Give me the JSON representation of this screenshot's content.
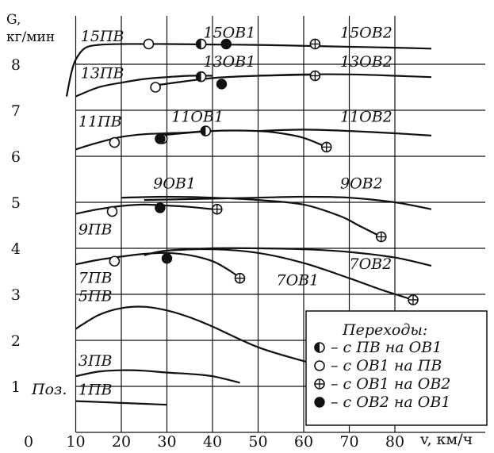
{
  "chart_data": {
    "type": "line",
    "title": "",
    "ylabel_top": "G,",
    "ylabel_unit": "кг/мин",
    "xlabel": "v, км/ч",
    "xlim": [
      0,
      80
    ],
    "ylim": [
      0,
      9
    ],
    "x_ticks": [
      10,
      20,
      30,
      40,
      50,
      60,
      70,
      80
    ],
    "y_ticks": [
      1,
      2,
      3,
      4,
      5,
      6,
      7,
      8
    ],
    "origin_label": "0",
    "grid": true,
    "position_label": "Поз.",
    "series": [
      {
        "label": "1ПВ",
        "points": [
          [
            10,
            0.68
          ],
          [
            15,
            0.66
          ],
          [
            20,
            0.64
          ],
          [
            25,
            0.62
          ],
          [
            30,
            0.6
          ]
        ]
      },
      {
        "label": "3ПВ",
        "points": [
          [
            10,
            1.22
          ],
          [
            15,
            1.32
          ],
          [
            20,
            1.35
          ],
          [
            25,
            1.34
          ],
          [
            30,
            1.3
          ],
          [
            35,
            1.27
          ],
          [
            40,
            1.22
          ],
          [
            46,
            1.08
          ]
        ]
      },
      {
        "label": "5ПВ",
        "points": [
          [
            10,
            2.25
          ],
          [
            15,
            2.55
          ],
          [
            20,
            2.7
          ],
          [
            25,
            2.73
          ],
          [
            30,
            2.65
          ],
          [
            35,
            2.5
          ],
          [
            40,
            2.3
          ],
          [
            50,
            1.85
          ],
          [
            60,
            1.55
          ],
          [
            63,
            1.5
          ]
        ]
      },
      {
        "label": "7ПВ",
        "points": [
          [
            10,
            3.65
          ],
          [
            15,
            3.75
          ],
          [
            20,
            3.82
          ],
          [
            25,
            3.88
          ],
          [
            30,
            3.9
          ],
          [
            35,
            3.85
          ],
          [
            40,
            3.72
          ],
          [
            44,
            3.5
          ],
          [
            46,
            3.35
          ]
        ]
      },
      {
        "label": "7ОВ1",
        "points": [
          [
            25,
            3.85
          ],
          [
            30,
            3.95
          ],
          [
            40,
            3.98
          ],
          [
            50,
            3.9
          ],
          [
            60,
            3.68
          ],
          [
            70,
            3.35
          ],
          [
            77,
            3.1
          ],
          [
            84,
            2.88
          ]
        ]
      },
      {
        "label": "7ОВ2",
        "points": [
          [
            30,
            3.95
          ],
          [
            40,
            4.0
          ],
          [
            50,
            4.0
          ],
          [
            60,
            3.98
          ],
          [
            70,
            3.92
          ],
          [
            80,
            3.8
          ],
          [
            88,
            3.62
          ]
        ]
      },
      {
        "label": "9ПВ",
        "points": [
          [
            10,
            4.75
          ],
          [
            15,
            4.85
          ],
          [
            20,
            4.92
          ],
          [
            25,
            4.95
          ],
          [
            30,
            4.93
          ],
          [
            35,
            4.9
          ],
          [
            40,
            4.85
          ]
        ]
      },
      {
        "label": "9ОВ1",
        "points": [
          [
            20,
            5.1
          ],
          [
            30,
            5.12
          ],
          [
            40,
            5.1
          ],
          [
            50,
            5.05
          ],
          [
            60,
            4.95
          ],
          [
            68,
            4.7
          ],
          [
            72,
            4.5
          ],
          [
            77,
            4.25
          ]
        ]
      },
      {
        "label": "9ОВ2",
        "points": [
          [
            25,
            5.05
          ],
          [
            40,
            5.08
          ],
          [
            50,
            5.1
          ],
          [
            60,
            5.12
          ],
          [
            70,
            5.1
          ],
          [
            80,
            5.0
          ],
          [
            88,
            4.85
          ]
        ]
      },
      {
        "label": "11ПВ",
        "points": [
          [
            10,
            6.15
          ],
          [
            15,
            6.3
          ],
          [
            20,
            6.42
          ],
          [
            25,
            6.48
          ],
          [
            30,
            6.5
          ],
          [
            35,
            6.52
          ],
          [
            38,
            6.55
          ]
        ]
      },
      {
        "label": "11ОВ1",
        "points": [
          [
            28,
            6.45
          ],
          [
            40,
            6.55
          ],
          [
            50,
            6.55
          ],
          [
            55,
            6.5
          ],
          [
            60,
            6.4
          ],
          [
            65,
            6.2
          ]
        ]
      },
      {
        "label": "11ОВ2",
        "points": [
          [
            50,
            6.55
          ],
          [
            60,
            6.58
          ],
          [
            70,
            6.55
          ],
          [
            80,
            6.5
          ],
          [
            88,
            6.45
          ]
        ]
      },
      {
        "label": "13ПВ",
        "points": [
          [
            10,
            7.3
          ],
          [
            15,
            7.5
          ],
          [
            20,
            7.6
          ],
          [
            25,
            7.68
          ],
          [
            30,
            7.72
          ],
          [
            35,
            7.75
          ],
          [
            40,
            7.75
          ]
        ]
      },
      {
        "label": "13ОВ1",
        "points": [
          [
            28,
            7.55
          ],
          [
            40,
            7.7
          ],
          [
            50,
            7.75
          ],
          [
            60,
            7.77
          ],
          [
            63,
            7.78
          ]
        ]
      },
      {
        "label": "13ОВ2",
        "points": [
          [
            50,
            7.75
          ],
          [
            60,
            7.78
          ],
          [
            70,
            7.78
          ],
          [
            80,
            7.75
          ],
          [
            88,
            7.72
          ]
        ]
      },
      {
        "label": "15ПВ",
        "points": [
          [
            8,
            7.3
          ],
          [
            9,
            7.8
          ],
          [
            10,
            8.1
          ],
          [
            12,
            8.35
          ],
          [
            15,
            8.42
          ],
          [
            20,
            8.44
          ],
          [
            25,
            8.44
          ],
          [
            30,
            8.44
          ],
          [
            40,
            8.43
          ],
          [
            50,
            8.42
          ],
          [
            60,
            8.4
          ],
          [
            70,
            8.38
          ],
          [
            80,
            8.36
          ],
          [
            88,
            8.34
          ]
        ]
      }
    ],
    "curve_labels": [
      {
        "text": "15ПВ",
        "x": 1,
        "y": 8.5
      },
      {
        "text": "15ОВ1",
        "x": 38,
        "y": 8.58
      },
      {
        "text": "15ОВ2",
        "x": 68,
        "y": 8.58
      },
      {
        "text": "13ПВ",
        "x": 1,
        "y": 7.7
      },
      {
        "text": "13ОВ1",
        "x": 38,
        "y": 7.95
      },
      {
        "text": "13ОВ2",
        "x": 68,
        "y": 7.95
      },
      {
        "text": "11ПВ",
        "x": 0.5,
        "y": 6.65
      },
      {
        "text": "11ОВ1",
        "x": 31,
        "y": 6.75
      },
      {
        "text": "11ОВ2",
        "x": 68,
        "y": 6.75
      },
      {
        "text": "9ОВ1",
        "x": 27,
        "y": 5.3
      },
      {
        "text": "9ОВ2",
        "x": 68,
        "y": 5.3
      },
      {
        "text": "9ПВ",
        "x": 0.5,
        "y": 4.3
      },
      {
        "text": "7ОВ2",
        "x": 70,
        "y": 3.55
      },
      {
        "text": "7ПВ",
        "x": 0.5,
        "y": 3.25
      },
      {
        "text": "7ОВ1",
        "x": 54,
        "y": 3.2
      },
      {
        "text": "5ПВ",
        "x": 0.5,
        "y": 2.85
      },
      {
        "text": "3ПВ",
        "x": 0.5,
        "y": 1.45
      },
      {
        "text": "1ПВ",
        "x": 0.5,
        "y": 0.82
      }
    ],
    "transition_points": [
      {
        "kind": "pv_to_ov1",
        "points": [
          [
            37.5,
            8.44
          ],
          [
            37.5,
            7.73
          ],
          [
            38.5,
            6.55
          ],
          [
            29,
            6.38
          ]
        ]
      },
      {
        "kind": "ov1_to_pv",
        "points": [
          [
            26,
            8.44
          ],
          [
            27.5,
            7.5
          ],
          [
            18.5,
            6.3
          ],
          [
            18,
            4.8
          ],
          [
            18.5,
            3.72
          ]
        ]
      },
      {
        "kind": "ov1_to_ov2",
        "points": [
          [
            62.5,
            8.44
          ],
          [
            62.5,
            7.75
          ],
          [
            65,
            6.2
          ],
          [
            46,
            3.35
          ],
          [
            77,
            4.25
          ],
          [
            84,
            2.88
          ],
          [
            41,
            4.85
          ]
        ]
      },
      {
        "kind": "ov2_to_ov1",
        "points": [
          [
            43,
            8.44
          ],
          [
            42,
            7.57
          ],
          [
            28.5,
            6.38
          ],
          [
            28.5,
            4.88
          ],
          [
            30,
            3.78
          ]
        ]
      }
    ],
    "legend": {
      "title": "Переходы:",
      "placement": "bottom-right",
      "entries": [
        {
          "kind": "pv_to_ov1",
          "text": "– с ПВ на ОВ1"
        },
        {
          "kind": "ov1_to_pv",
          "text": "– с ОВ1 на ПВ"
        },
        {
          "kind": "ov1_to_ov2",
          "text": "– с ОВ1 на ОВ2"
        },
        {
          "kind": "ov2_to_ov1",
          "text": "– с ОВ2 на ОВ1"
        }
      ]
    }
  }
}
